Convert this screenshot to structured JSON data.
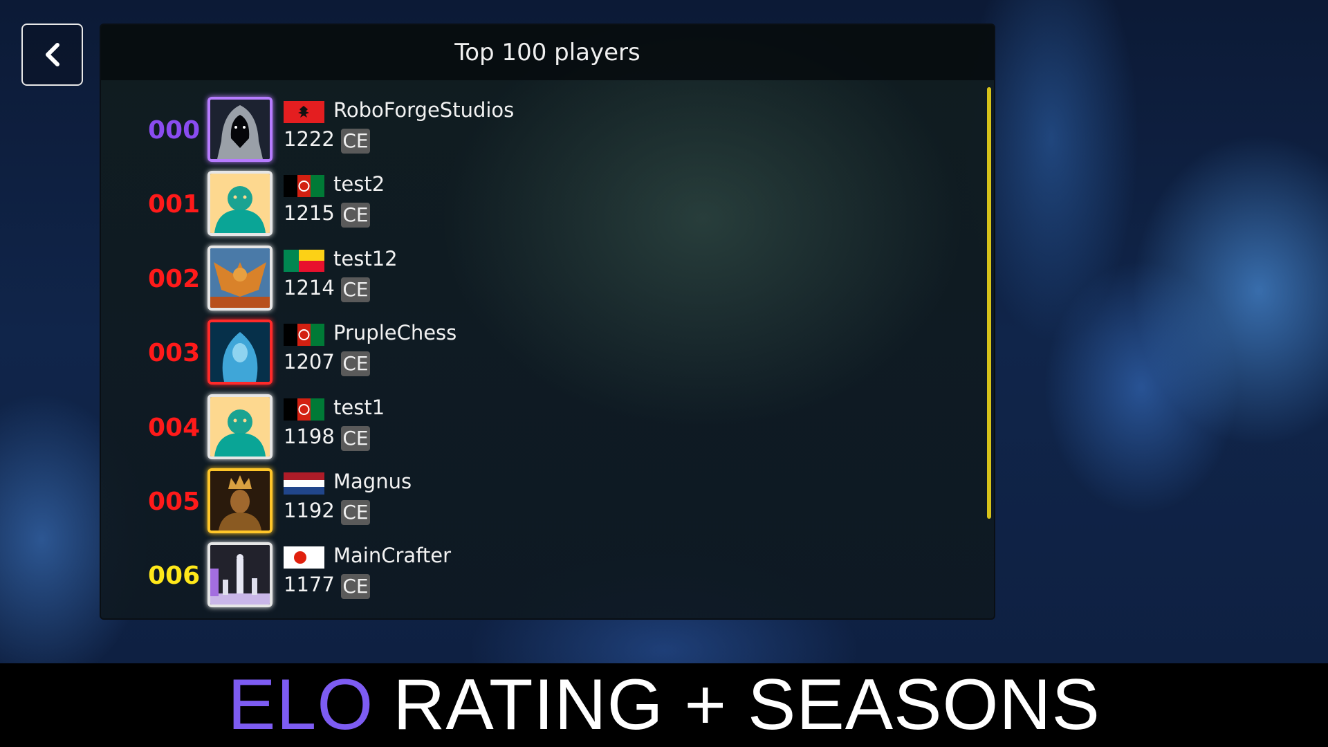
{
  "header": {
    "title": "Top 100 players"
  },
  "colors": {
    "scrollbar": "#d6c21a",
    "rank_first": "#8a4cf0",
    "rank_mid": "#ff1a1a",
    "rank_last": "#ffe81a",
    "elo_accent": "#7d5cf2"
  },
  "players": [
    {
      "rank": "000",
      "name": "RoboForgeStudios",
      "rating": "1222",
      "badge": "CE",
      "flag": "albania",
      "avatar": "hooded-figure",
      "frame": "#b77cff",
      "rank_color": "#8a4cf0"
    },
    {
      "rank": "001",
      "name": "test2",
      "rating": "1215",
      "badge": "CE",
      "flag": "afghanistan",
      "avatar": "default",
      "frame": "#e6e6e6",
      "rank_color": "#ff1a1a"
    },
    {
      "rank": "002",
      "name": "test12",
      "rating": "1214",
      "badge": "CE",
      "flag": "benin",
      "avatar": "dragon",
      "frame": "#e6e6e6",
      "rank_color": "#ff1a1a"
    },
    {
      "rank": "003",
      "name": "PrupleChess",
      "rating": "1207",
      "badge": "CE",
      "flag": "afghanistan",
      "avatar": "water-spirit",
      "frame": "#ff2a2a",
      "rank_color": "#ff1a1a"
    },
    {
      "rank": "004",
      "name": "test1",
      "rating": "1198",
      "badge": "CE",
      "flag": "afghanistan",
      "avatar": "default",
      "frame": "#e6e6e6",
      "rank_color": "#ff1a1a"
    },
    {
      "rank": "005",
      "name": "Magnus",
      "rating": "1192",
      "badge": "CE",
      "flag": "netherlands",
      "avatar": "king",
      "frame": "#ffc629",
      "rank_color": "#ff1a1a"
    },
    {
      "rank": "006",
      "name": "MainCrafter",
      "rating": "1177",
      "badge": "CE",
      "flag": "japan",
      "avatar": "chess-pieces",
      "frame": "#e6e6e6",
      "rank_color": "#ffe81a"
    }
  ],
  "banner": {
    "accent": "ELO",
    "rest": "RATING + SEASONS"
  }
}
